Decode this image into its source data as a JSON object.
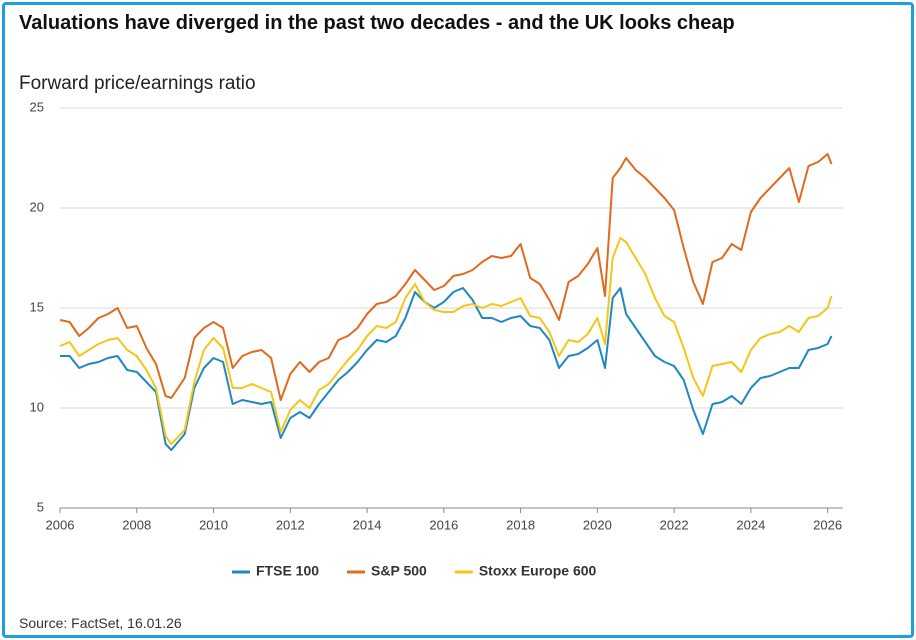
{
  "chart_data": {
    "type": "line",
    "title": "Valuations have diverged in the past two decades - and the UK looks cheap",
    "subtitle": "Forward price/earnings ratio",
    "source": "Source: FactSet, 16.01.26",
    "x": [
      2006.0,
      2006.25,
      2006.5,
      2006.75,
      2007.0,
      2007.25,
      2007.5,
      2007.75,
      2008.0,
      2008.25,
      2008.5,
      2008.75,
      2008.9,
      2009.25,
      2009.5,
      2009.75,
      2010.0,
      2010.25,
      2010.5,
      2010.75,
      2011.0,
      2011.25,
      2011.5,
      2011.75,
      2012.0,
      2012.25,
      2012.5,
      2012.75,
      2013.0,
      2013.25,
      2013.5,
      2013.75,
      2014.0,
      2014.25,
      2014.5,
      2014.75,
      2015.0,
      2015.25,
      2015.5,
      2015.75,
      2016.0,
      2016.25,
      2016.5,
      2016.75,
      2017.0,
      2017.25,
      2017.5,
      2017.75,
      2018.0,
      2018.25,
      2018.5,
      2018.75,
      2019.0,
      2019.25,
      2019.5,
      2019.75,
      2020.0,
      2020.2,
      2020.4,
      2020.6,
      2020.75,
      2021.0,
      2021.25,
      2021.5,
      2021.75,
      2022.0,
      2022.25,
      2022.5,
      2022.75,
      2023.0,
      2023.25,
      2023.5,
      2023.75,
      2024.0,
      2024.25,
      2024.5,
      2024.75,
      2025.0,
      2025.25,
      2025.5,
      2025.75,
      2026.0,
      2026.1
    ],
    "series": [
      {
        "name": "FTSE 100",
        "color": "#1f88c3",
        "values": [
          12.6,
          12.6,
          12.0,
          12.2,
          12.3,
          12.5,
          12.6,
          11.9,
          11.8,
          11.3,
          10.8,
          8.2,
          7.9,
          8.7,
          11.0,
          12.0,
          12.5,
          12.3,
          10.2,
          10.4,
          10.3,
          10.2,
          10.3,
          8.5,
          9.5,
          9.8,
          9.5,
          10.2,
          10.8,
          11.4,
          11.8,
          12.3,
          12.9,
          13.4,
          13.3,
          13.6,
          14.5,
          15.8,
          15.3,
          15.0,
          15.3,
          15.8,
          16.0,
          15.4,
          14.5,
          14.5,
          14.3,
          14.5,
          14.6,
          14.1,
          14.0,
          13.4,
          12.0,
          12.6,
          12.7,
          13.0,
          13.4,
          12.0,
          15.5,
          16.0,
          14.7,
          14.0,
          13.3,
          12.6,
          12.3,
          12.1,
          11.4,
          9.9,
          8.7,
          10.2,
          10.3,
          10.6,
          10.2,
          11.0,
          11.5,
          11.6,
          11.8,
          12.0,
          12.0,
          12.9,
          13.0,
          13.2,
          13.6
        ]
      },
      {
        "name": "S&P 500",
        "color": "#e06a1e",
        "values": [
          14.4,
          14.3,
          13.6,
          14.0,
          14.5,
          14.7,
          15.0,
          14.0,
          14.1,
          13.0,
          12.2,
          10.6,
          10.5,
          11.5,
          13.5,
          14.0,
          14.3,
          14.0,
          12.0,
          12.6,
          12.8,
          12.9,
          12.5,
          10.4,
          11.7,
          12.3,
          11.8,
          12.3,
          12.5,
          13.4,
          13.6,
          14.0,
          14.7,
          15.2,
          15.3,
          15.6,
          16.2,
          16.9,
          16.4,
          15.9,
          16.1,
          16.6,
          16.7,
          16.9,
          17.3,
          17.6,
          17.5,
          17.6,
          18.2,
          16.5,
          16.2,
          15.4,
          14.4,
          16.3,
          16.6,
          17.2,
          18.0,
          15.6,
          21.5,
          22.0,
          22.5,
          21.9,
          21.5,
          21.0,
          20.5,
          19.9,
          18.0,
          16.3,
          15.2,
          17.3,
          17.5,
          18.2,
          17.9,
          19.8,
          20.5,
          21.0,
          21.5,
          22.0,
          20.3,
          22.1,
          22.3,
          22.7,
          22.2
        ]
      },
      {
        "name": "Stoxx Europe 600",
        "color": "#f5c518",
        "values": [
          13.1,
          13.3,
          12.6,
          12.9,
          13.2,
          13.4,
          13.5,
          12.9,
          12.6,
          11.9,
          11.0,
          8.6,
          8.2,
          8.9,
          11.3,
          12.9,
          13.5,
          13.0,
          11.0,
          11.0,
          11.2,
          11.0,
          10.8,
          8.8,
          9.9,
          10.4,
          10.0,
          10.9,
          11.2,
          11.8,
          12.4,
          12.9,
          13.6,
          14.1,
          14.0,
          14.3,
          15.5,
          16.2,
          15.3,
          14.9,
          14.8,
          14.8,
          15.1,
          15.2,
          15.0,
          15.2,
          15.1,
          15.3,
          15.5,
          14.6,
          14.5,
          13.8,
          12.6,
          13.4,
          13.3,
          13.7,
          14.5,
          13.2,
          17.5,
          18.5,
          18.3,
          17.5,
          16.7,
          15.5,
          14.6,
          14.3,
          13.0,
          11.5,
          10.6,
          12.1,
          12.2,
          12.3,
          11.8,
          12.9,
          13.5,
          13.7,
          13.8,
          14.1,
          13.8,
          14.5,
          14.6,
          15.0,
          15.6
        ]
      }
    ],
    "xlim": [
      2006,
      2026.4
    ],
    "xticks": [
      2006,
      2008,
      2010,
      2012,
      2014,
      2016,
      2018,
      2020,
      2022,
      2024,
      2026
    ],
    "ylim": [
      5,
      25
    ],
    "yticks": [
      5,
      10,
      15,
      20,
      25
    ],
    "grid": true
  }
}
